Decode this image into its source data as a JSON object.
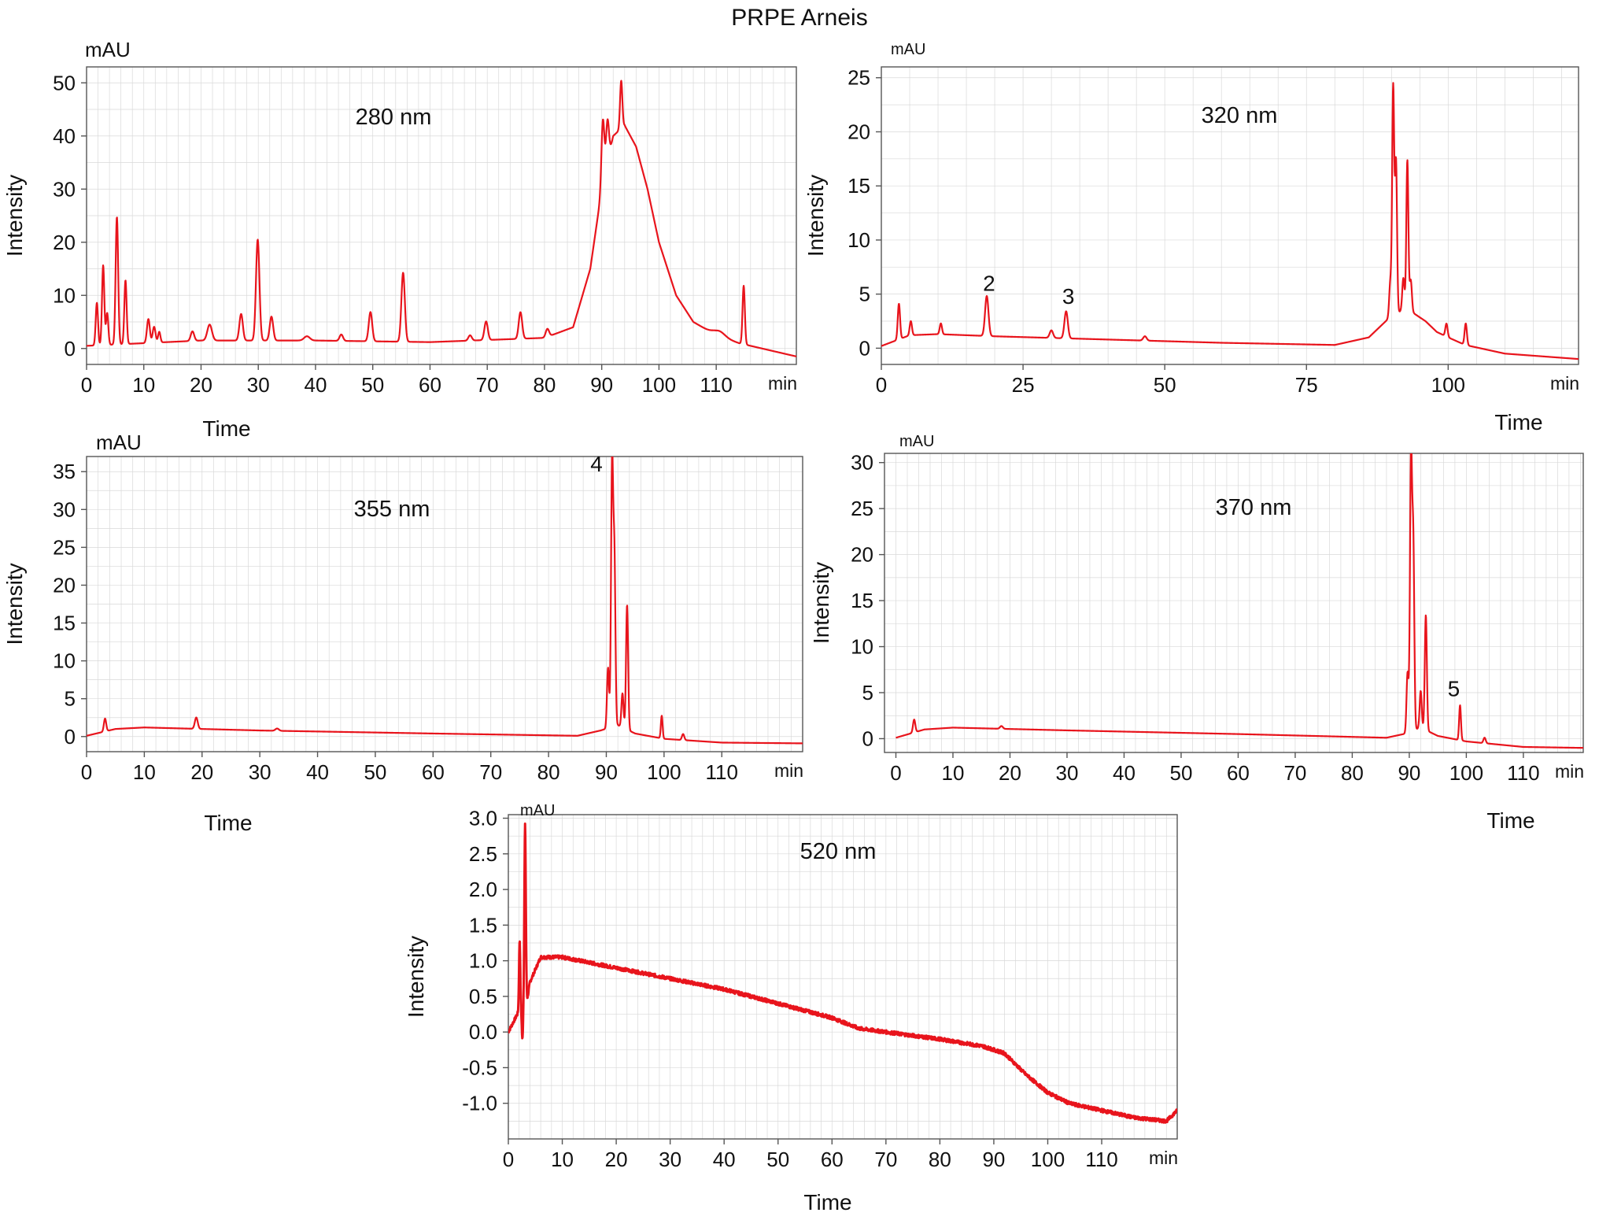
{
  "figure_title": "PRPE Arneis",
  "colors": {
    "trace": "#e8141c",
    "grid": "#d9d9d9",
    "axis": "#555555"
  },
  "chart_data": [
    {
      "type": "line",
      "title": "280 nm",
      "xlabel": "Time",
      "ylabel": "Intensity",
      "x_unit": "min",
      "y_unit": "mAU",
      "xlim": [
        0,
        124
      ],
      "ylim": [
        -3,
        53
      ],
      "xticks": [
        0,
        10,
        20,
        30,
        40,
        50,
        60,
        70,
        80,
        90,
        100,
        110
      ],
      "yticks": [
        0,
        10,
        20,
        30,
        40,
        50
      ],
      "baseline": [
        [
          0,
          0.5
        ],
        [
          20,
          1.5
        ],
        [
          40,
          1.5
        ],
        [
          60,
          1.2
        ],
        [
          80,
          2
        ],
        [
          85,
          4
        ],
        [
          88,
          15
        ],
        [
          90,
          30
        ],
        [
          92,
          40
        ],
        [
          94,
          42
        ],
        [
          96,
          38
        ],
        [
          98,
          30
        ],
        [
          100,
          20
        ],
        [
          103,
          10
        ],
        [
          106,
          5
        ],
        [
          110,
          2.5
        ],
        [
          114,
          1
        ],
        [
          118,
          0
        ],
        [
          124,
          -1.5
        ]
      ],
      "peaks": [
        {
          "x": 1.8,
          "y": 8,
          "w": 0.2
        },
        {
          "x": 2.9,
          "y": 15,
          "w": 0.2
        },
        {
          "x": 3.6,
          "y": 6,
          "w": 0.2
        },
        {
          "x": 5.3,
          "y": 24,
          "w": 0.22
        },
        {
          "x": 6.8,
          "y": 12,
          "w": 0.2
        },
        {
          "x": 10.8,
          "y": 4.5,
          "w": 0.25
        },
        {
          "x": 11.8,
          "y": 3,
          "w": 0.25
        },
        {
          "x": 12.7,
          "y": 2,
          "w": 0.2
        },
        {
          "x": 18.5,
          "y": 1.8,
          "w": 0.3
        },
        {
          "x": 21.5,
          "y": 3,
          "w": 0.4
        },
        {
          "x": 27,
          "y": 5,
          "w": 0.3
        },
        {
          "x": 29.9,
          "y": 19,
          "w": 0.3
        },
        {
          "x": 32.3,
          "y": 4.5,
          "w": 0.3
        },
        {
          "x": 38.5,
          "y": 0.8,
          "w": 0.5
        },
        {
          "x": 44.5,
          "y": 1.2,
          "w": 0.3
        },
        {
          "x": 49.6,
          "y": 5.5,
          "w": 0.3
        },
        {
          "x": 55.3,
          "y": 13,
          "w": 0.3
        },
        {
          "x": 67,
          "y": 1,
          "w": 0.3
        },
        {
          "x": 69.8,
          "y": 3.5,
          "w": 0.3
        },
        {
          "x": 75.8,
          "y": 5,
          "w": 0.3
        },
        {
          "x": 80.5,
          "y": 1.5,
          "w": 0.3
        },
        {
          "x": 90.2,
          "y": 12,
          "w": 0.25
        },
        {
          "x": 91,
          "y": 8,
          "w": 0.25
        },
        {
          "x": 93.4,
          "y": 9,
          "w": 0.2
        },
        {
          "x": 110.5,
          "y": 1,
          "w": 1.0
        },
        {
          "x": 114.8,
          "y": 11,
          "w": 0.2
        }
      ],
      "annotations": []
    },
    {
      "type": "line",
      "title": "320 nm",
      "xlabel": "Time",
      "ylabel": "Intensity",
      "x_unit": "min",
      "y_unit": "mAU",
      "xlim": [
        0,
        123
      ],
      "ylim": [
        -1.5,
        26
      ],
      "xticks": [
        0,
        25,
        50,
        75,
        100
      ],
      "yticks": [
        0,
        5,
        10,
        15,
        20,
        25
      ],
      "baseline": [
        [
          0,
          0.2
        ],
        [
          5,
          1.2
        ],
        [
          10,
          1.3
        ],
        [
          20,
          1.1
        ],
        [
          40,
          0.8
        ],
        [
          60,
          0.5
        ],
        [
          80,
          0.3
        ],
        [
          86,
          1
        ],
        [
          88,
          2
        ],
        [
          90,
          3
        ],
        [
          92,
          3.5
        ],
        [
          94,
          3.2
        ],
        [
          96,
          2.5
        ],
        [
          98,
          1.5
        ],
        [
          100,
          1
        ],
        [
          103,
          0.3
        ],
        [
          110,
          -0.5
        ],
        [
          123,
          -1
        ]
      ],
      "peaks": [
        {
          "x": 3.1,
          "y": 3.3,
          "w": 0.2
        },
        {
          "x": 5.2,
          "y": 1.3,
          "w": 0.2
        },
        {
          "x": 10.5,
          "y": 1,
          "w": 0.2
        },
        {
          "x": 18.6,
          "y": 3.7,
          "w": 0.3
        },
        {
          "x": 30,
          "y": 0.7,
          "w": 0.3
        },
        {
          "x": 32.6,
          "y": 2.5,
          "w": 0.3
        },
        {
          "x": 46.5,
          "y": 0.4,
          "w": 0.3
        },
        {
          "x": 89.8,
          "y": 3.2,
          "w": 0.2
        },
        {
          "x": 90.3,
          "y": 21,
          "w": 0.18
        },
        {
          "x": 90.8,
          "y": 14,
          "w": 0.18
        },
        {
          "x": 92.1,
          "y": 3,
          "w": 0.2
        },
        {
          "x": 92.8,
          "y": 14,
          "w": 0.18
        },
        {
          "x": 93.4,
          "y": 3,
          "w": 0.2
        },
        {
          "x": 99.7,
          "y": 1.2,
          "w": 0.2
        },
        {
          "x": 103.1,
          "y": 2,
          "w": 0.2
        }
      ],
      "annotations": [
        {
          "text": "2",
          "x": 19.0,
          "y": 5.3
        },
        {
          "text": "3",
          "x": 33.0,
          "y": 4.1
        }
      ]
    },
    {
      "type": "line",
      "title": "355 nm",
      "xlabel": "Time",
      "ylabel": "Intensity",
      "x_unit": "min",
      "y_unit": "mAU",
      "xlim": [
        0,
        124
      ],
      "ylim": [
        -2,
        37
      ],
      "xticks": [
        0,
        10,
        20,
        30,
        40,
        50,
        60,
        70,
        80,
        90,
        100,
        110
      ],
      "yticks": [
        0,
        5,
        10,
        15,
        20,
        25,
        30,
        35
      ],
      "baseline": [
        [
          0,
          0.1
        ],
        [
          5,
          1
        ],
        [
          10,
          1.2
        ],
        [
          30,
          0.8
        ],
        [
          60,
          0.4
        ],
        [
          85,
          0.1
        ],
        [
          89,
          0.8
        ],
        [
          92,
          1.5
        ],
        [
          95,
          0.4
        ],
        [
          100,
          -0.3
        ],
        [
          110,
          -0.8
        ],
        [
          124,
          -0.9
        ]
      ],
      "peaks": [
        {
          "x": 3.2,
          "y": 1.7,
          "w": 0.2
        },
        {
          "x": 19,
          "y": 1.5,
          "w": 0.25
        },
        {
          "x": 33,
          "y": 0.3,
          "w": 0.3
        },
        {
          "x": 90.3,
          "y": 8,
          "w": 0.18
        },
        {
          "x": 91,
          "y": 34.5,
          "w": 0.18
        },
        {
          "x": 91.4,
          "y": 22,
          "w": 0.18
        },
        {
          "x": 92.8,
          "y": 4.5,
          "w": 0.18
        },
        {
          "x": 93.6,
          "y": 16.5,
          "w": 0.18
        },
        {
          "x": 99.6,
          "y": 3,
          "w": 0.15
        },
        {
          "x": 103.3,
          "y": 0.8,
          "w": 0.2
        }
      ],
      "annotations": [
        {
          "text": "4",
          "x": 88.3,
          "y": 35.0
        }
      ]
    },
    {
      "type": "line",
      "title": "370 nm",
      "xlabel": "Time",
      "ylabel": "Intensity",
      "x_unit": "min",
      "y_unit": "mAU",
      "xlim": [
        -2,
        120.5
      ],
      "ylim": [
        -1.5,
        31
      ],
      "xticks": [
        0,
        10,
        20,
        30,
        40,
        50,
        60,
        70,
        80,
        90,
        100,
        110
      ],
      "yticks": [
        0,
        5,
        10,
        15,
        20,
        25,
        30
      ],
      "baseline": [
        [
          0,
          0.1
        ],
        [
          5,
          1
        ],
        [
          10,
          1.2
        ],
        [
          30,
          0.9
        ],
        [
          60,
          0.5
        ],
        [
          86,
          0.1
        ],
        [
          89,
          0.5
        ],
        [
          92,
          1.2
        ],
        [
          95,
          0.3
        ],
        [
          100,
          -0.3
        ],
        [
          110,
          -0.9
        ],
        [
          120,
          -1
        ]
      ],
      "peaks": [
        {
          "x": 3.2,
          "y": 1.4,
          "w": 0.2
        },
        {
          "x": 18.5,
          "y": 0.3,
          "w": 0.25
        },
        {
          "x": 89.7,
          "y": 6.5,
          "w": 0.18
        },
        {
          "x": 90.3,
          "y": 29.5,
          "w": 0.18
        },
        {
          "x": 90.7,
          "y": 20,
          "w": 0.18
        },
        {
          "x": 92,
          "y": 4,
          "w": 0.18
        },
        {
          "x": 92.9,
          "y": 12.5,
          "w": 0.18
        },
        {
          "x": 98.9,
          "y": 3.8,
          "w": 0.16
        },
        {
          "x": 103.2,
          "y": 0.6,
          "w": 0.2
        }
      ],
      "annotations": [
        {
          "text": "5",
          "x": 97.8,
          "y": 4.6
        }
      ]
    },
    {
      "type": "line",
      "title": "520 nm",
      "xlabel": "Time",
      "ylabel": "Intensity",
      "x_unit": "min",
      "y_unit": "mAU",
      "xlim": [
        0,
        124
      ],
      "ylim": [
        -1.5,
        3.05
      ],
      "xticks": [
        0,
        10,
        20,
        30,
        40,
        50,
        60,
        70,
        80,
        90,
        100,
        110
      ],
      "yticks": [
        -1.0,
        -0.5,
        0.0,
        0.5,
        1.0,
        1.5,
        2.0,
        2.5,
        3.0
      ],
      "noise": 0.025,
      "baseline": [
        [
          0,
          0
        ],
        [
          2,
          0.3
        ],
        [
          3,
          0.2
        ],
        [
          4,
          0.7
        ],
        [
          6,
          1.05
        ],
        [
          10,
          1.05
        ],
        [
          20,
          0.9
        ],
        [
          30,
          0.75
        ],
        [
          40,
          0.6
        ],
        [
          50,
          0.4
        ],
        [
          60,
          0.2
        ],
        [
          65,
          0.05
        ],
        [
          70,
          0.0
        ],
        [
          80,
          -0.1
        ],
        [
          88,
          -0.2
        ],
        [
          92,
          -0.3
        ],
        [
          96,
          -0.6
        ],
        [
          100,
          -0.85
        ],
        [
          104,
          -1.0
        ],
        [
          110,
          -1.1
        ],
        [
          116,
          -1.2
        ],
        [
          122,
          -1.25
        ],
        [
          124,
          -1.1
        ]
      ],
      "peaks": [
        {
          "x": 2.1,
          "y": 1.0,
          "w": 0.12
        },
        {
          "x": 2.6,
          "y": -0.35,
          "w": 0.1
        },
        {
          "x": 3.1,
          "y": 2.65,
          "w": 0.14
        }
      ],
      "annotations": []
    }
  ]
}
